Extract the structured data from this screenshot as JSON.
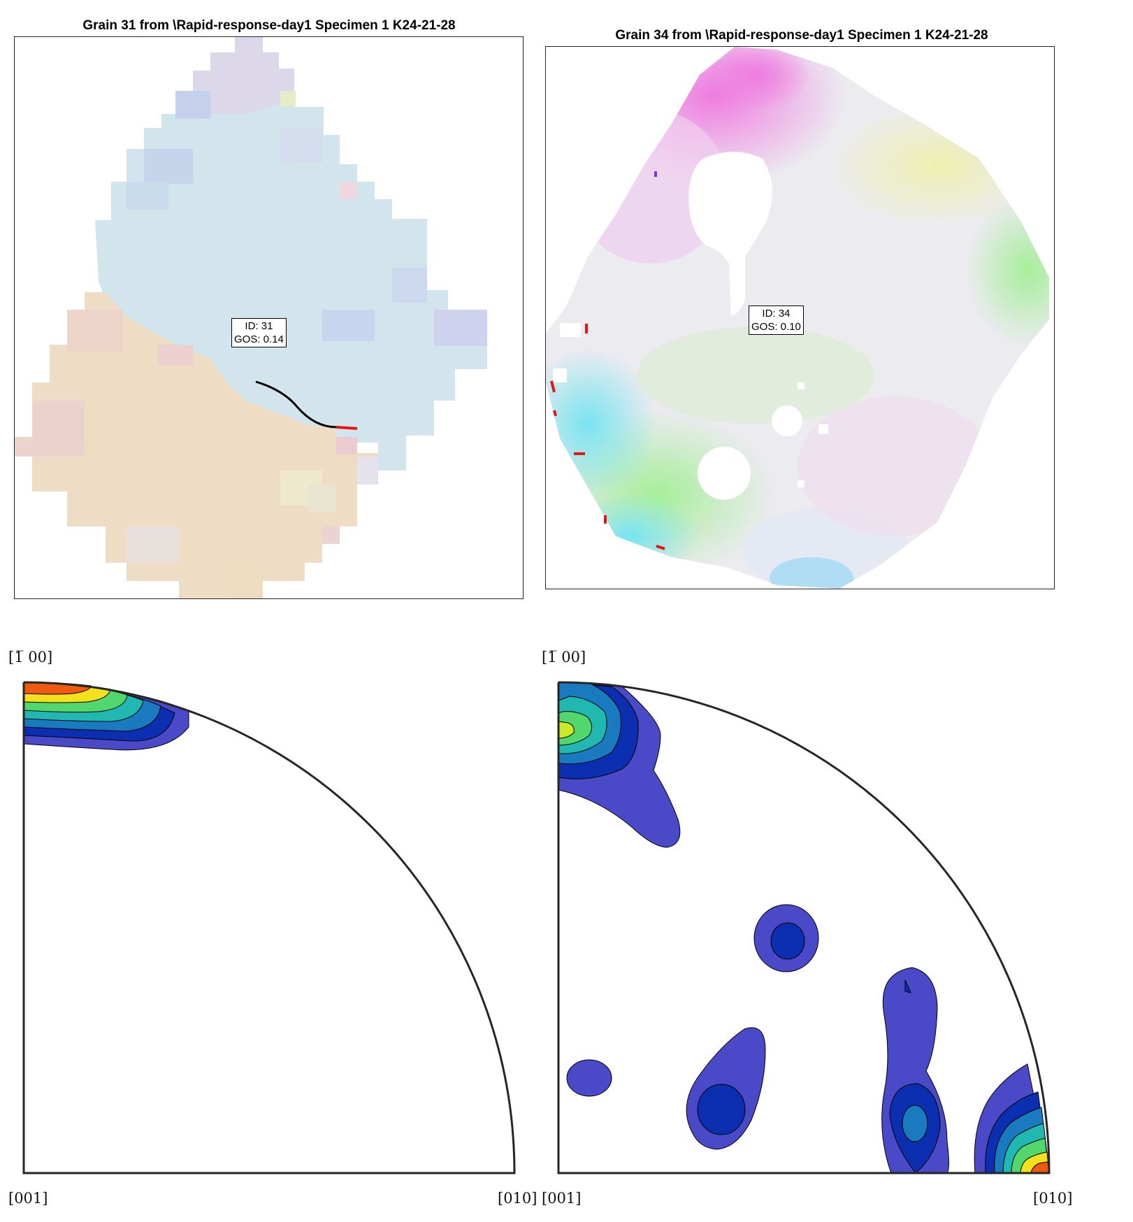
{
  "maps": [
    {
      "title": "Grain 31 from \\Rapid-response-day1 Specimen 1 K24-21-28",
      "id_label": "ID: 31",
      "gos_label": "GOS: 0.14"
    },
    {
      "title": "Grain 34 from \\Rapid-response-day1 Specimen 1 K24-21-28",
      "id_label": "ID: 34",
      "gos_label": "GOS: 0.10"
    }
  ],
  "ipf": [
    {
      "top_label": "[1̅ 00]",
      "bottom_left_label": "[001]",
      "bottom_right_label": "[010]"
    },
    {
      "top_label": "[1̅ 00]",
      "bottom_left_label": "[001]",
      "bottom_right_label": "[010]"
    }
  ],
  "colors": {
    "contour_levels": [
      "#4a4ac8",
      "#0b2fb0",
      "#1a7abf",
      "#20b8b0",
      "#52d66e",
      "#c8ea2a",
      "#f4e01c",
      "#f08a1a",
      "#ee5a10"
    ],
    "boundary": "#000000",
    "boundary_highlight": "#e51515"
  }
}
